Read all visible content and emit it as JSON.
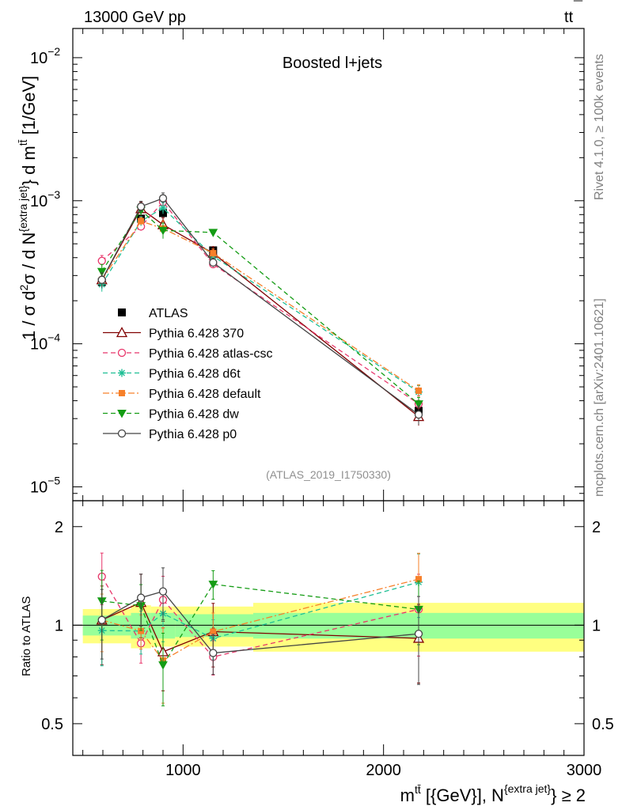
{
  "header": {
    "left": "13000 GeV pp",
    "right_base": "t",
    "right_mid": "t",
    "right_bar": "¯"
  },
  "side_text": {
    "rivet": "Rivet 4.1.0, ≥ 100k events",
    "mcplots": "mcplots.cern.ch [arXiv:2401.10621]"
  },
  "chart_data": {
    "type": "line",
    "title": "Boosted l+jets",
    "analysis_id": "(ATLAS_2019_I1750330)",
    "y_label": {
      "part1": "1 / σ d",
      "sup2": "2",
      "part2": "σ / d N",
      "sup_extra": "{extra jet}",
      "part3": "} d m",
      "sup_tt": "tt̄",
      "part4": " [1/GeV]"
    },
    "x_label": {
      "part1": "m",
      "sup_tt": "tt̄",
      "part2": " [{GeV}], N",
      "sup_extra": "{extra jet}",
      "part3": "} ≥ 2"
    },
    "ratio_label": "Ratio to ATLAS",
    "x_range": [
      450,
      3000
    ],
    "y_range_main": [
      8e-06,
      0.016
    ],
    "y_range_ratio": [
      0.4,
      2.4
    ],
    "x_ticks": [
      {
        "value": 1000,
        "label": "1000"
      },
      {
        "value": 2000,
        "label": "2000"
      },
      {
        "value": 3000,
        "label": "3000"
      }
    ],
    "y_ticks_main": [
      {
        "value": 1e-05,
        "base": "10",
        "exp": "−5"
      },
      {
        "value": 0.0001,
        "base": "10",
        "exp": "−4"
      },
      {
        "value": 0.001,
        "base": "10",
        "exp": "−3"
      },
      {
        "value": 0.01,
        "base": "10",
        "exp": "−2"
      }
    ],
    "y_ticks_ratio": [
      {
        "value": 0.5,
        "label": "0.5"
      },
      {
        "value": 1,
        "label": "1"
      },
      {
        "value": 2,
        "label": "2"
      }
    ],
    "bins": [
      {
        "lo": 450,
        "hi": 740,
        "x": 595
      },
      {
        "lo": 740,
        "hi": 840,
        "x": 790
      },
      {
        "lo": 840,
        "hi": 960,
        "x": 900
      },
      {
        "lo": 960,
        "hi": 1350,
        "x": 1150
      },
      {
        "lo": 1350,
        "hi": 3000,
        "x": 2175
      }
    ],
    "bands": {
      "green": [
        [
          0.93,
          1.07
        ],
        [
          0.91,
          1.09
        ],
        [
          0.91,
          1.09
        ],
        [
          0.92,
          1.08
        ],
        [
          0.91,
          1.09
        ]
      ],
      "yellow": [
        [
          0.88,
          1.12
        ],
        [
          0.85,
          1.15
        ],
        [
          0.86,
          1.14
        ],
        [
          0.86,
          1.14
        ],
        [
          0.83,
          1.17
        ]
      ]
    },
    "data": {
      "name": "ATLAS",
      "x": [
        595,
        790,
        900,
        1150,
        2175
      ],
      "y": [
        0.00027,
        0.00075,
        0.00082,
        0.00045,
        3.4e-05
      ],
      "err": [
        0.04,
        0.06,
        0.06,
        0.07,
        0.09
      ]
    },
    "series": [
      {
        "name": "Pythia 6.428 370",
        "color": "#800000",
        "dash": "",
        "marker": "triangle-open",
        "y": [
          0.00028,
          0.00088,
          0.00068,
          0.00043,
          3.1e-05
        ],
        "err": [
          0.27,
          0.22,
          0.24,
          0.22,
          0.27
        ]
      },
      {
        "name": "Pythia 6.428 atlas-csc",
        "color": "#e8356a",
        "dash": "6,4",
        "marker": "circle-open",
        "y": [
          0.00038,
          0.00066,
          0.00098,
          0.00036,
          3.8e-05
        ],
        "err": [
          0.18,
          0.13,
          0.18,
          0.12,
          0.28
        ]
      },
      {
        "name": "Pythia 6.428 d6t",
        "color": "#1fbf95",
        "dash": "6,4",
        "marker": "star",
        "y": [
          0.00026,
          0.00072,
          0.00089,
          0.00041,
          4.6e-05
        ],
        "err": [
          0.22,
          0.15,
          0.18,
          0.14,
          0.22
        ]
      },
      {
        "name": "Pythia 6.428 default",
        "color": "#f7802a",
        "dash": "8,3,2,3",
        "marker": "square",
        "y": [
          0.00028,
          0.00072,
          0.00064,
          0.00043,
          4.7e-05
        ],
        "err": [
          0.2,
          0.12,
          0.26,
          0.14,
          0.2
        ]
      },
      {
        "name": "Pythia 6.428 dw",
        "color": "#149c14",
        "dash": "6,4",
        "marker": "triangle-down",
        "y": [
          0.00032,
          0.00086,
          0.00062,
          0.0006,
          3.8e-05
        ],
        "err": [
          0.24,
          0.16,
          0.25,
          0.1,
          0.22
        ]
      },
      {
        "name": "Pythia 6.428 p0",
        "color": "#444444",
        "dash": "",
        "marker": "circle-open",
        "y": [
          0.00028,
          0.00091,
          0.00104,
          0.00037,
          3.2e-05
        ],
        "err": [
          0.24,
          0.18,
          0.18,
          0.14,
          0.3
        ]
      }
    ]
  }
}
